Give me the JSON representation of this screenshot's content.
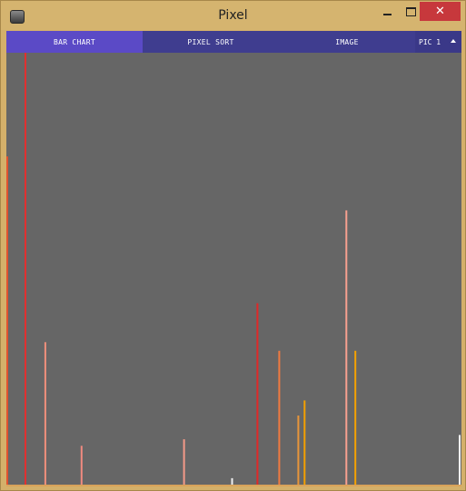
{
  "window": {
    "title": "Pixel",
    "minimize_icon": "minimize-icon",
    "maximize_icon": "maximize-icon",
    "close_icon": "close-icon",
    "close_color": "#c7383c"
  },
  "tabs": [
    {
      "label": "BAR CHART",
      "active": true
    },
    {
      "label": "PIXEL SORT",
      "active": false
    },
    {
      "label": "IMAGE",
      "active": false
    }
  ],
  "picture_select": {
    "selected": "PIC 1",
    "icon": "caret-up-icon"
  },
  "colors": {
    "tab_active": "#5b4ac6",
    "tab_inactive": "#3f3d8f",
    "plot_background": "#666666"
  },
  "chart_data": {
    "type": "bar",
    "title": "",
    "xlabel": "",
    "ylabel": "",
    "x_range": [
      0,
      500
    ],
    "ylim": [
      0,
      100
    ],
    "grid": false,
    "bars": [
      {
        "x": 0,
        "value": 76,
        "color": "#e0522f"
      },
      {
        "x": 20,
        "value": 100,
        "color": "#e03030"
      },
      {
        "x": 42,
        "value": 33,
        "color": "#f0907c"
      },
      {
        "x": 82,
        "value": 9,
        "color": "#f08a80"
      },
      {
        "x": 195,
        "value": 10.5,
        "color": "#f49a88"
      },
      {
        "x": 248,
        "value": 1.5,
        "color": "#f0f0f0"
      },
      {
        "x": 276,
        "value": 42,
        "color": "#e02828"
      },
      {
        "x": 300,
        "value": 31,
        "color": "#f07a40"
      },
      {
        "x": 321,
        "value": 16,
        "color": "#e8963a"
      },
      {
        "x": 328,
        "value": 19.5,
        "color": "#f5a000"
      },
      {
        "x": 374,
        "value": 63.5,
        "color": "#f8a090"
      },
      {
        "x": 384,
        "value": 31,
        "color": "#f7a200"
      },
      {
        "x": 499,
        "value": 11.5,
        "color": "#f4f4f4"
      }
    ]
  }
}
